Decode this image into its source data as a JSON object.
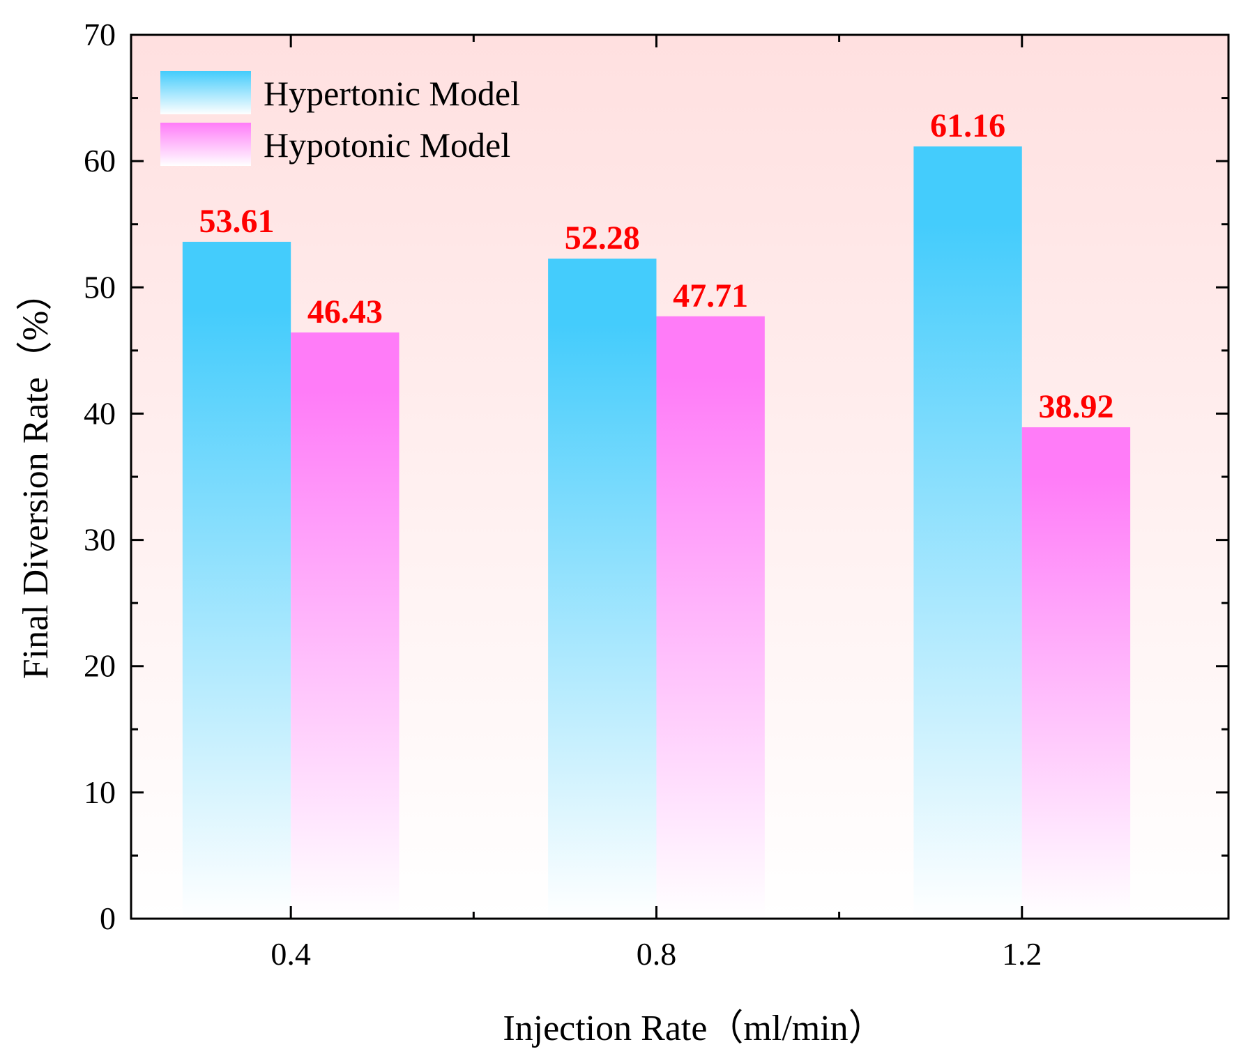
{
  "chart_data": {
    "type": "bar",
    "title": "",
    "xlabel": "Injection Rate（ml/min）",
    "ylabel": "Final Diversion Rate（%）",
    "categories": [
      "0.4",
      "0.8",
      "1.2"
    ],
    "series": [
      {
        "name": "Hypertonic Model",
        "values": [
          53.61,
          52.28,
          61.16
        ],
        "labels": [
          "53.61",
          "52.28",
          "61.16"
        ],
        "color": "#44ccfc"
      },
      {
        "name": "Hypotonic Model",
        "values": [
          46.43,
          47.71,
          38.92
        ],
        "labels": [
          "46.43",
          "47.71",
          "38.92"
        ],
        "color": "#ff7cf8"
      }
    ],
    "ylim": [
      0,
      70
    ],
    "yticks": [
      "0",
      "10",
      "20",
      "30",
      "40",
      "50",
      "60",
      "70"
    ],
    "grid": false,
    "legend_position": "top-left",
    "background_gradient": [
      "#ffe0e0",
      "#ffffff"
    ],
    "label_color": "#ff0000"
  }
}
